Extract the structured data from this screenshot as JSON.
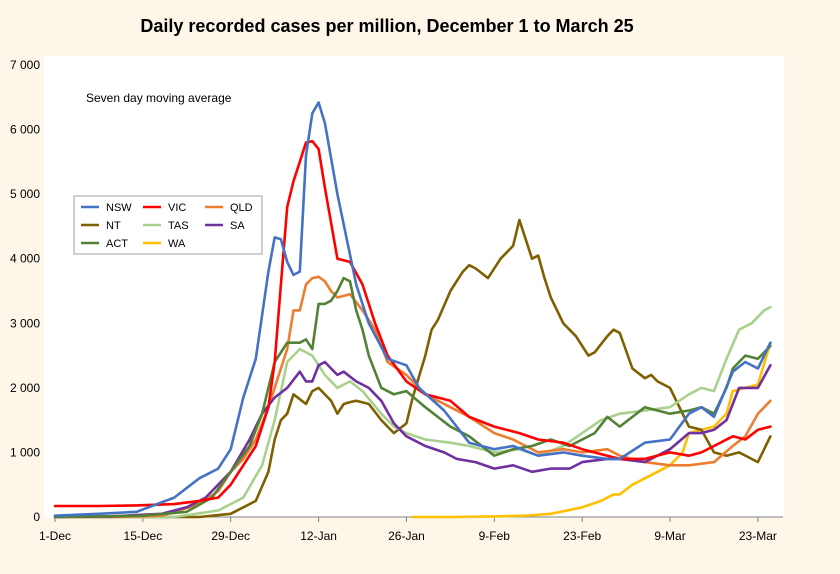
{
  "chart_data": {
    "type": "line",
    "title": "Daily recorded cases per million, December 1 to March 25",
    "annotation": "Seven day moving average",
    "x_tick_labels": [
      "1-Dec",
      "15-Dec",
      "29-Dec",
      "12-Jan",
      "26-Jan",
      "9-Feb",
      "23-Feb",
      "9-Mar",
      "23-Mar"
    ],
    "y_tick_labels": [
      "0",
      "1 000",
      "2 000",
      "3 000",
      "4 000",
      "5 000",
      "6 000",
      "7 000"
    ],
    "ylim": [
      0,
      7000
    ],
    "xlim": [
      "1-Dec",
      "27-Mar"
    ],
    "grid": "none",
    "legend_position": "top-left",
    "series": [
      {
        "name": "NSW",
        "color": "#4472c4",
        "x": [
          "1-Dec",
          "8-Dec",
          "14-Dec",
          "20-Dec",
          "24-Dec",
          "27-Dec",
          "29-Dec",
          "31-Dec",
          "2-Jan",
          "4-Jan",
          "5-Jan",
          "6-Jan",
          "7-Jan",
          "8-Jan",
          "9-Jan",
          "10-Jan",
          "11-Jan",
          "12-Jan",
          "13-Jan",
          "15-Jan",
          "18-Jan",
          "20-Jan",
          "23-Jan",
          "26-Jan",
          "28-Jan",
          "1-Feb",
          "5-Feb",
          "9-Feb",
          "12-Feb",
          "16-Feb",
          "20-Feb",
          "23-Feb",
          "27-Feb",
          "1-Mar",
          "5-Mar",
          "9-Mar",
          "12-Mar",
          "14-Mar",
          "16-Mar",
          "19-Mar",
          "21-Mar",
          "23-Mar",
          "25-Mar"
        ],
        "values": [
          20,
          50,
          80,
          300,
          600,
          750,
          1050,
          1850,
          2450,
          3800,
          4330,
          4300,
          3950,
          3750,
          3800,
          5600,
          6250,
          6420,
          6100,
          5000,
          3600,
          3000,
          2450,
          2350,
          2000,
          1650,
          1150,
          1050,
          1100,
          950,
          1000,
          950,
          900,
          900,
          1150,
          1200,
          1600,
          1700,
          1550,
          2250,
          2400,
          2300,
          2700
        ]
      },
      {
        "name": "VIC",
        "color": "#ff0000",
        "x": [
          "1-Dec",
          "8-Dec",
          "14-Dec",
          "20-Dec",
          "24-Dec",
          "27-Dec",
          "29-Dec",
          "31-Dec",
          "2-Jan",
          "4-Jan",
          "5-Jan",
          "6-Jan",
          "7-Jan",
          "8-Jan",
          "9-Jan",
          "10-Jan",
          "11-Jan",
          "12-Jan",
          "13-Jan",
          "15-Jan",
          "17-Jan",
          "19-Jan",
          "21-Jan",
          "23-Jan",
          "26-Jan",
          "29-Jan",
          "2-Feb",
          "5-Feb",
          "9-Feb",
          "13-Feb",
          "16-Feb",
          "20-Feb",
          "23-Feb",
          "27-Feb",
          "1-Mar",
          "5-Mar",
          "9-Mar",
          "12-Mar",
          "14-Mar",
          "16-Mar",
          "19-Mar",
          "21-Mar",
          "23-Mar",
          "25-Mar"
        ],
        "values": [
          170,
          170,
          180,
          200,
          250,
          300,
          500,
          800,
          1100,
          1700,
          2400,
          3600,
          4800,
          5200,
          5500,
          5800,
          5820,
          5700,
          5100,
          4000,
          3950,
          3600,
          3000,
          2500,
          2100,
          1900,
          1800,
          1550,
          1400,
          1300,
          1200,
          1150,
          1050,
          950,
          900,
          900,
          1000,
          950,
          1000,
          1100,
          1250,
          1200,
          1350,
          1400
        ]
      },
      {
        "name": "QLD",
        "color": "#ed7d31",
        "x": [
          "1-Dec",
          "10-Dec",
          "18-Dec",
          "24-Dec",
          "27-Dec",
          "29-Dec",
          "31-Dec",
          "2-Jan",
          "4-Jan",
          "6-Jan",
          "7-Jan",
          "8-Jan",
          "9-Jan",
          "10-Jan",
          "11-Jan",
          "12-Jan",
          "13-Jan",
          "14-Jan",
          "15-Jan",
          "17-Jan",
          "19-Jan",
          "21-Jan",
          "23-Jan",
          "26-Jan",
          "29-Jan",
          "2-Feb",
          "5-Feb",
          "9-Feb",
          "12-Feb",
          "16-Feb",
          "20-Feb",
          "23-Feb",
          "27-Feb",
          "1-Mar",
          "5-Mar",
          "9-Mar",
          "12-Mar",
          "16-Mar",
          "19-Mar",
          "21-Mar",
          "23-Mar",
          "25-Mar"
        ],
        "values": [
          0,
          0,
          20,
          200,
          400,
          700,
          900,
          1200,
          1700,
          2300,
          2600,
          3200,
          3200,
          3600,
          3700,
          3720,
          3650,
          3500,
          3400,
          3450,
          3200,
          2900,
          2400,
          2200,
          1900,
          1700,
          1550,
          1300,
          1200,
          1000,
          1050,
          1000,
          1050,
          950,
          850,
          800,
          800,
          850,
          1100,
          1250,
          1600,
          1800
        ]
      },
      {
        "name": "NT",
        "color": "#7f6000",
        "x": [
          "1-Dec",
          "15-Dec",
          "24-Dec",
          "29-Dec",
          "2-Jan",
          "4-Jan",
          "5-Jan",
          "6-Jan",
          "7-Jan",
          "8-Jan",
          "10-Jan",
          "11-Jan",
          "12-Jan",
          "14-Jan",
          "15-Jan",
          "16-Jan",
          "17-Jan",
          "18-Jan",
          "20-Jan",
          "22-Jan",
          "24-Jan",
          "26-Jan",
          "27-Jan",
          "29-Jan",
          "30-Jan",
          "31-Jan",
          "2-Feb",
          "4-Feb",
          "5-Feb",
          "6-Feb",
          "8-Feb",
          "10-Feb",
          "12-Feb",
          "13-Feb",
          "14-Feb",
          "15-Feb",
          "16-Feb",
          "17-Feb",
          "18-Feb",
          "20-Feb",
          "22-Feb",
          "23-Feb",
          "24-Feb",
          "25-Feb",
          "27-Feb",
          "28-Feb",
          "1-Mar",
          "3-Mar",
          "5-Mar",
          "6-Mar",
          "7-Mar",
          "9-Mar",
          "12-Mar",
          "14-Mar",
          "16-Mar",
          "18-Mar",
          "20-Mar",
          "23-Mar",
          "25-Mar"
        ],
        "values": [
          0,
          0,
          0,
          50,
          250,
          700,
          1200,
          1500,
          1600,
          1900,
          1750,
          1950,
          2000,
          1800,
          1600,
          1750,
          1780,
          1800,
          1750,
          1500,
          1300,
          1450,
          1850,
          2500,
          2900,
          3050,
          3500,
          3800,
          3900,
          3850,
          3700,
          4000,
          4200,
          4600,
          4300,
          4000,
          4050,
          3700,
          3400,
          3000,
          2800,
          2650,
          2500,
          2550,
          2800,
          2900,
          2850,
          2300,
          2150,
          2200,
          2100,
          2000,
          1400,
          1350,
          1000,
          950,
          1000,
          850,
          1250
        ]
      },
      {
        "name": "TAS",
        "color": "#a9d18e",
        "x": [
          "1-Dec",
          "20-Dec",
          "27-Dec",
          "31-Dec",
          "3-Jan",
          "5-Jan",
          "7-Jan",
          "9-Jan",
          "11-Jan",
          "13-Jan",
          "15-Jan",
          "17-Jan",
          "19-Jan",
          "22-Jan",
          "24-Jan",
          "26-Jan",
          "29-Jan",
          "2-Feb",
          "5-Feb",
          "9-Feb",
          "13-Feb",
          "16-Feb",
          "20-Feb",
          "23-Feb",
          "26-Feb",
          "1-Mar",
          "5-Mar",
          "9-Mar",
          "12-Mar",
          "14-Mar",
          "16-Mar",
          "18-Mar",
          "20-Mar",
          "22-Mar",
          "24-Mar",
          "25-Mar"
        ],
        "values": [
          0,
          0,
          100,
          300,
          800,
          1500,
          2400,
          2600,
          2500,
          2200,
          2000,
          2100,
          1950,
          1600,
          1400,
          1300,
          1200,
          1150,
          1100,
          1000,
          1050,
          950,
          1100,
          1300,
          1500,
          1600,
          1650,
          1700,
          1900,
          2000,
          1950,
          2450,
          2900,
          3000,
          3200,
          3250
        ]
      },
      {
        "name": "SA",
        "color": "#7030a0",
        "x": [
          "1-Dec",
          "10-Dec",
          "18-Dec",
          "22-Dec",
          "25-Dec",
          "29-Dec",
          "1-Jan",
          "3-Jan",
          "5-Jan",
          "7-Jan",
          "9-Jan",
          "10-Jan",
          "11-Jan",
          "12-Jan",
          "13-Jan",
          "14-Jan",
          "15-Jan",
          "16-Jan",
          "18-Jan",
          "20-Jan",
          "22-Jan",
          "24-Jan",
          "26-Jan",
          "29-Jan",
          "1-Feb",
          "3-Feb",
          "6-Feb",
          "9-Feb",
          "12-Feb",
          "15-Feb",
          "18-Feb",
          "21-Feb",
          "23-Feb",
          "27-Feb",
          "1-Mar",
          "5-Mar",
          "9-Mar",
          "12-Mar",
          "14-Mar",
          "16-Mar",
          "18-Mar",
          "20-Mar",
          "23-Mar",
          "25-Mar"
        ],
        "values": [
          0,
          10,
          50,
          150,
          300,
          700,
          1200,
          1600,
          1850,
          2000,
          2250,
          2100,
          2100,
          2350,
          2400,
          2300,
          2200,
          2250,
          2100,
          2000,
          1800,
          1450,
          1250,
          1100,
          1000,
          900,
          850,
          750,
          800,
          700,
          750,
          750,
          850,
          900,
          900,
          850,
          1050,
          1300,
          1300,
          1350,
          1500,
          2000,
          2000,
          2350
        ]
      },
      {
        "name": "ACT",
        "color": "#548235",
        "x": [
          "1-Dec",
          "15-Dec",
          "22-Dec",
          "26-Dec",
          "29-Dec",
          "1-Jan",
          "3-Jan",
          "5-Jan",
          "7-Jan",
          "9-Jan",
          "10-Jan",
          "11-Jan",
          "12-Jan",
          "13-Jan",
          "14-Jan",
          "15-Jan",
          "16-Jan",
          "17-Jan",
          "18-Jan",
          "19-Jan",
          "20-Jan",
          "22-Jan",
          "24-Jan",
          "26-Jan",
          "29-Jan",
          "2-Feb",
          "5-Feb",
          "9-Feb",
          "12-Feb",
          "15-Feb",
          "18-Feb",
          "21-Feb",
          "23-Feb",
          "25-Feb",
          "27-Feb",
          "1-Mar",
          "3-Mar",
          "5-Mar",
          "9-Mar",
          "12-Mar",
          "14-Mar",
          "16-Mar",
          "18-Mar",
          "19-Mar",
          "21-Mar",
          "23-Mar",
          "25-Mar"
        ],
        "values": [
          0,
          20,
          80,
          300,
          700,
          1100,
          1600,
          2400,
          2700,
          2700,
          2750,
          2600,
          3300,
          3300,
          3350,
          3500,
          3700,
          3650,
          3200,
          2900,
          2500,
          2000,
          1900,
          1950,
          1700,
          1400,
          1250,
          950,
          1050,
          1100,
          1200,
          1100,
          1200,
          1300,
          1550,
          1400,
          1550,
          1700,
          1600,
          1650,
          1700,
          1600,
          2000,
          2300,
          2500,
          2450,
          2650
        ]
      },
      {
        "name": "WA",
        "color": "#ffc000",
        "x": [
          "27-Jan",
          "2-Feb",
          "9-Feb",
          "14-Feb",
          "18-Feb",
          "23-Feb",
          "26-Feb",
          "28-Feb",
          "1-Mar",
          "3-Mar",
          "5-Mar",
          "7-Mar",
          "9-Mar",
          "11-Mar",
          "12-Mar",
          "14-Mar",
          "16-Mar",
          "18-Mar",
          "19-Mar",
          "21-Mar",
          "23-Mar",
          "25-Mar"
        ],
        "values": [
          0,
          0,
          10,
          20,
          50,
          150,
          250,
          350,
          350,
          500,
          600,
          700,
          800,
          1000,
          1300,
          1350,
          1400,
          1600,
          1950,
          2000,
          2050,
          2700
        ]
      }
    ]
  }
}
